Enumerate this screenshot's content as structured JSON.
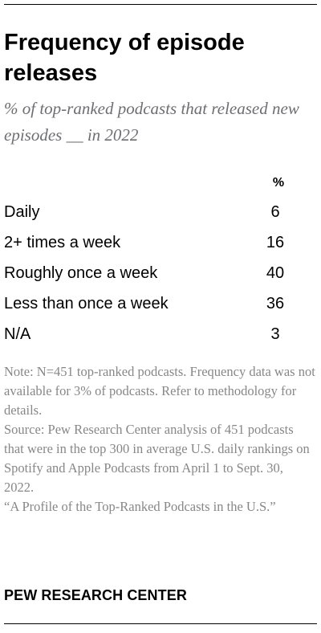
{
  "header": {
    "title": "Frequency of episode releases",
    "subtitle": "% of top-ranked podcasts that released new episodes __ in 2022"
  },
  "chart_data": {
    "type": "table",
    "column_header": "%",
    "rows": [
      {
        "label": "Daily",
        "value": "6"
      },
      {
        "label": "2+ times a week",
        "value": "16"
      },
      {
        "label": "Roughly once a week",
        "value": "40"
      },
      {
        "label": "Less than once a week",
        "value": "36"
      },
      {
        "label": "N/A",
        "value": "3"
      }
    ]
  },
  "footer": {
    "note": "Note: N=451 top-ranked podcasts. Frequency data was not available for 3% of podcasts. Refer to methodology for details.",
    "source": "Source: Pew Research Center analysis of 451 podcasts that were in the top 300 in average U.S. daily rankings on Spotify and Apple Podcasts from April 1 to Sept. 30, 2022.",
    "report": "“A Profile of the Top-Ranked Podcasts in the U.S.”",
    "logo": "PEW RESEARCH CENTER"
  }
}
